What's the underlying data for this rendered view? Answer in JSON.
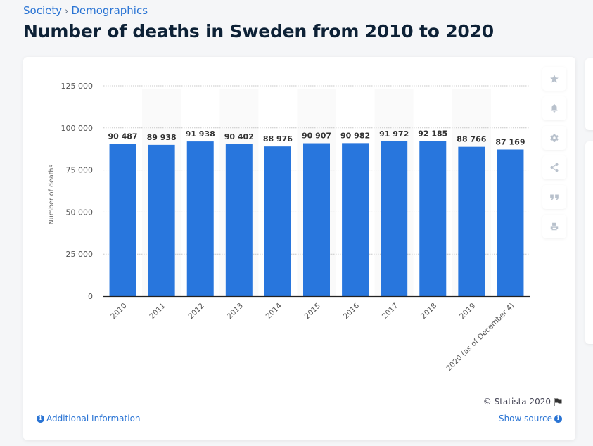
{
  "breadcrumb": {
    "items": [
      "Society",
      "Demographics"
    ],
    "separator": "›"
  },
  "page_title": "Number of deaths in Sweden from 2010 to 2020",
  "toolbar": {
    "buttons": [
      {
        "name": "favorite",
        "icon": "star-icon"
      },
      {
        "name": "notification",
        "icon": "bell-icon"
      },
      {
        "name": "settings",
        "icon": "gear-icon"
      },
      {
        "name": "share",
        "icon": "share-icon"
      },
      {
        "name": "cite",
        "icon": "quote-icon"
      },
      {
        "name": "print",
        "icon": "print-icon"
      }
    ]
  },
  "footer": {
    "additional_info": "Additional Information",
    "copyright": "© Statista 2020",
    "show_source": "Show source"
  },
  "colors": {
    "bar": "#2876dd",
    "link": "#2a74d4",
    "title": "#0d2136"
  },
  "chart_data": {
    "type": "bar",
    "title": "Number of deaths in Sweden from 2010 to 2020",
    "xlabel": "",
    "ylabel": "Number of deaths",
    "categories": [
      "2010",
      "2011",
      "2012",
      "2013",
      "2014",
      "2015",
      "2016",
      "2017",
      "2018",
      "2019",
      "2020 (as of December 4)"
    ],
    "values": [
      90487,
      89938,
      91938,
      90402,
      88976,
      90907,
      90982,
      91972,
      92185,
      88766,
      87169
    ],
    "value_labels": [
      "90 487",
      "89 938",
      "91 938",
      "90 402",
      "88 976",
      "90 907",
      "90 982",
      "91 972",
      "92 185",
      "88 766",
      "87 169"
    ],
    "ylim": [
      0,
      125000
    ],
    "yticks": [
      0,
      25000,
      50000,
      75000,
      100000,
      125000
    ],
    "ytick_labels": [
      "0",
      "25 000",
      "50 000",
      "75 000",
      "100 000",
      "125 000"
    ],
    "grid": true,
    "legend": "none"
  }
}
